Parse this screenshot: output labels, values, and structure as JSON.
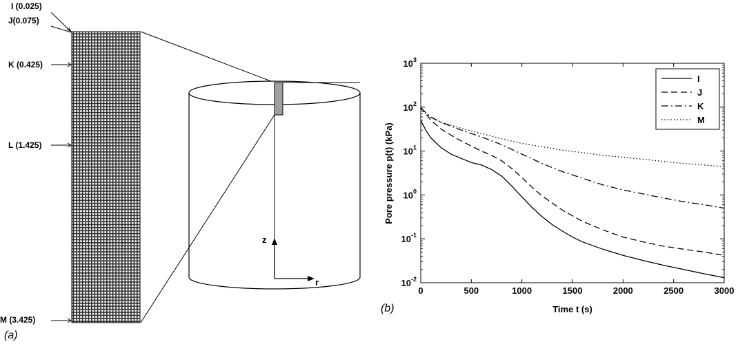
{
  "panel_a": {
    "tag": "(a)",
    "mesh_labels": [
      {
        "text": "I (0.025)"
      },
      {
        "text": "J(0.075)"
      },
      {
        "text": "K (0.425)"
      },
      {
        "text": "L (1.425)"
      },
      {
        "text": "M (3.425)"
      }
    ],
    "cylinder": {
      "axis_z": "z",
      "axis_r": "r",
      "selected_region_color": "#a0a0a0"
    }
  },
  "panel_b": {
    "tag": "(b)"
  },
  "chart_data": {
    "type": "line",
    "xlabel": "Time t  (s)",
    "ylabel": "Pore pressure  p(t)  (kPa)",
    "xlim": [
      0,
      3000
    ],
    "ylim": [
      0.01,
      1000
    ],
    "y_scale": "log",
    "x_ticks": [
      "0",
      "500",
      "1000",
      "1500",
      "2000",
      "2500",
      "3000"
    ],
    "y_ticks": [
      {
        "base": "10",
        "exp": "-2"
      },
      {
        "base": "10",
        "exp": "-1"
      },
      {
        "base": "10",
        "exp": "0"
      },
      {
        "base": "10",
        "exp": "1"
      },
      {
        "base": "10",
        "exp": "2"
      },
      {
        "base": "10",
        "exp": "3"
      }
    ],
    "legend_position": "top-right",
    "grid": false,
    "series": [
      {
        "name": "I",
        "style": "solid",
        "x": [
          0,
          50,
          100,
          200,
          300,
          400,
          500,
          600,
          700,
          800,
          900,
          1000,
          1100,
          1200,
          1300,
          1400,
          1500,
          1600,
          1800,
          2000,
          2200,
          2400,
          2600,
          2800,
          3000
        ],
        "y": [
          50,
          30,
          20,
          12,
          8.5,
          6.8,
          5.5,
          4.8,
          3.8,
          2.7,
          1.6,
          0.9,
          0.52,
          0.32,
          0.21,
          0.15,
          0.11,
          0.085,
          0.058,
          0.042,
          0.032,
          0.025,
          0.02,
          0.016,
          0.013
        ]
      },
      {
        "name": "J",
        "style": "dashed",
        "x": [
          0,
          100,
          200,
          300,
          400,
          500,
          600,
          700,
          800,
          900,
          1000,
          1100,
          1200,
          1400,
          1600,
          1800,
          2000,
          2200,
          2400,
          2600,
          2800,
          3000
        ],
        "y": [
          100,
          50,
          32,
          23,
          17,
          13,
          10,
          8,
          6,
          4,
          2.5,
          1.5,
          0.95,
          0.45,
          0.25,
          0.16,
          0.11,
          0.085,
          0.068,
          0.058,
          0.05,
          0.042
        ]
      },
      {
        "name": "K",
        "style": "dashdot",
        "x": [
          0,
          100,
          200,
          400,
          600,
          800,
          1000,
          1200,
          1400,
          1600,
          1800,
          2000,
          2200,
          2400,
          2600,
          2800,
          3000
        ],
        "y": [
          95,
          60,
          45,
          30,
          21,
          14,
          8.5,
          5.2,
          3.4,
          2.4,
          1.7,
          1.3,
          1.05,
          0.85,
          0.7,
          0.6,
          0.5
        ]
      },
      {
        "name": "M",
        "style": "dotted",
        "x": [
          0,
          100,
          200,
          400,
          600,
          800,
          1000,
          1200,
          1400,
          1600,
          1800,
          2000,
          2200,
          2400,
          2600,
          2800,
          3000
        ],
        "y": [
          90,
          58,
          46,
          33,
          25,
          19,
          15,
          12.5,
          10.5,
          9.2,
          8,
          7.2,
          6.5,
          5.8,
          5.2,
          4.8,
          4.4
        ]
      }
    ]
  }
}
